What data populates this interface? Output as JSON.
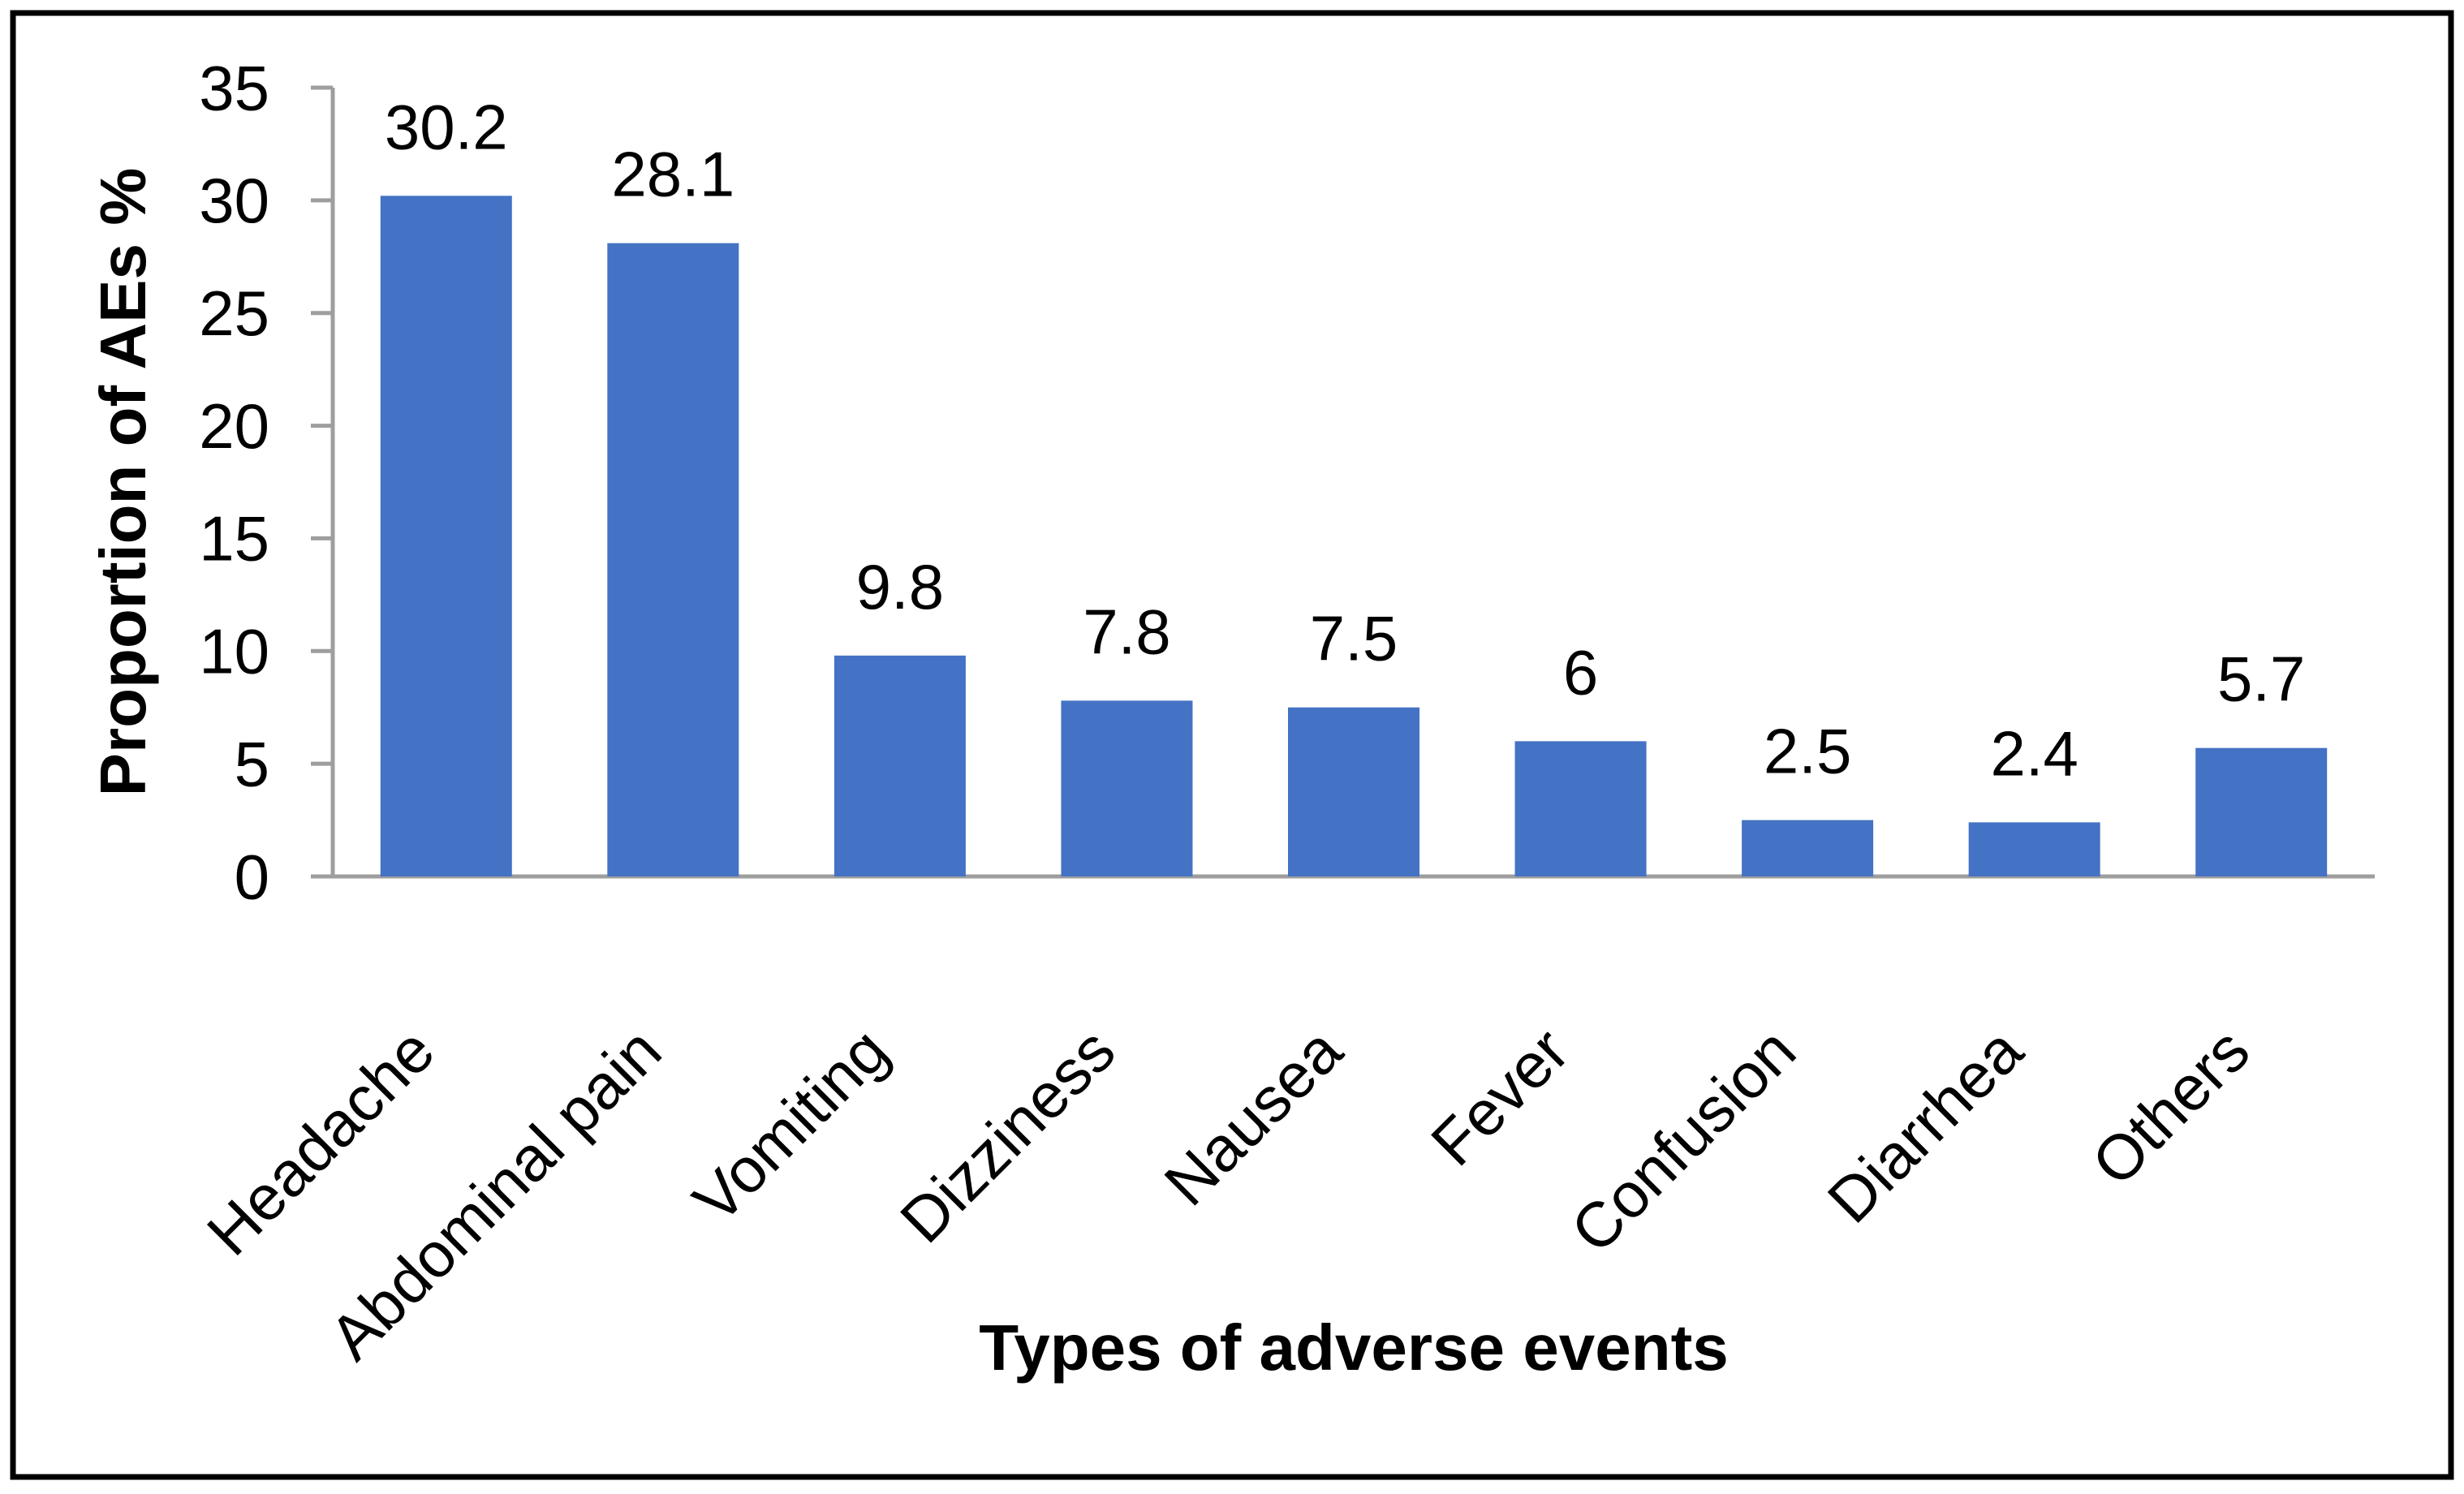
{
  "figure": {
    "background": "#FFFFFF",
    "border_color": "#000000"
  },
  "chart_data": {
    "type": "bar",
    "title": "",
    "categories": [
      "Headache",
      "Abdominal pain",
      "Vomiting",
      "Dizziness",
      "Nausea",
      "Fever",
      "Confusion",
      "Diarrhea",
      "Others"
    ],
    "values": [
      30.2,
      28.1,
      9.8,
      7.8,
      7.5,
      6,
      2.5,
      2.4,
      5.7
    ],
    "bar_labels": [
      "30.2",
      "28.1",
      "9.8",
      "7.8",
      "7.5",
      "6",
      "2.5",
      "2.4",
      "5.7"
    ],
    "xlabel": "Types of adverse events",
    "ylabel": "Proportion of AEs %",
    "ylim": [
      0,
      35
    ],
    "yticks": [
      0,
      5,
      10,
      15,
      20,
      25,
      30,
      35
    ],
    "grid": false,
    "legend": "none",
    "bar_color": "#4472C4",
    "axis_color": "#9E9E9E",
    "label_color": "#000000",
    "category_rotation_deg": 45
  }
}
